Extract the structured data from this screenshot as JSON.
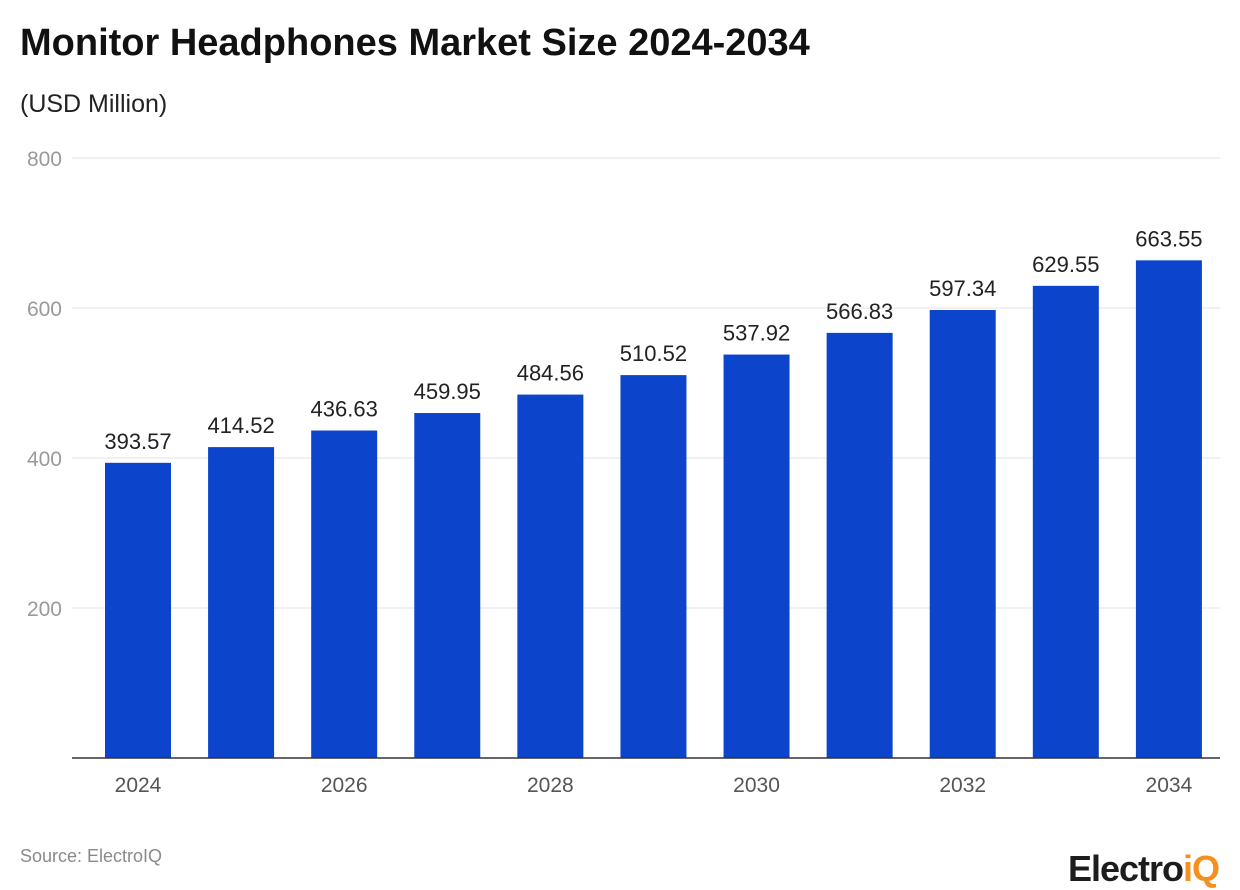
{
  "chart_data": {
    "type": "bar",
    "title": "Monitor Headphones Market Size 2024-2034",
    "subtitle": "(USD Million)",
    "categories": [
      "2024",
      "2025",
      "2026",
      "2027",
      "2028",
      "2029",
      "2030",
      "2031",
      "2032",
      "2033",
      "2034"
    ],
    "values": [
      393.57,
      414.52,
      436.63,
      459.95,
      484.56,
      510.52,
      537.92,
      566.83,
      597.34,
      629.55,
      663.55
    ],
    "x_tick_labels": [
      "2024",
      "2026",
      "2028",
      "2030",
      "2032",
      "2034"
    ],
    "y_ticks": [
      200,
      400,
      600,
      800
    ],
    "ylim": [
      0,
      800
    ],
    "grid": true,
    "bar_color": "#0c45cc",
    "xlabel": "",
    "ylabel": ""
  },
  "source": "Source: ElectroIQ",
  "logo": {
    "main": "Electro",
    "accent": "iQ",
    "accent_color": "#f5901e"
  }
}
